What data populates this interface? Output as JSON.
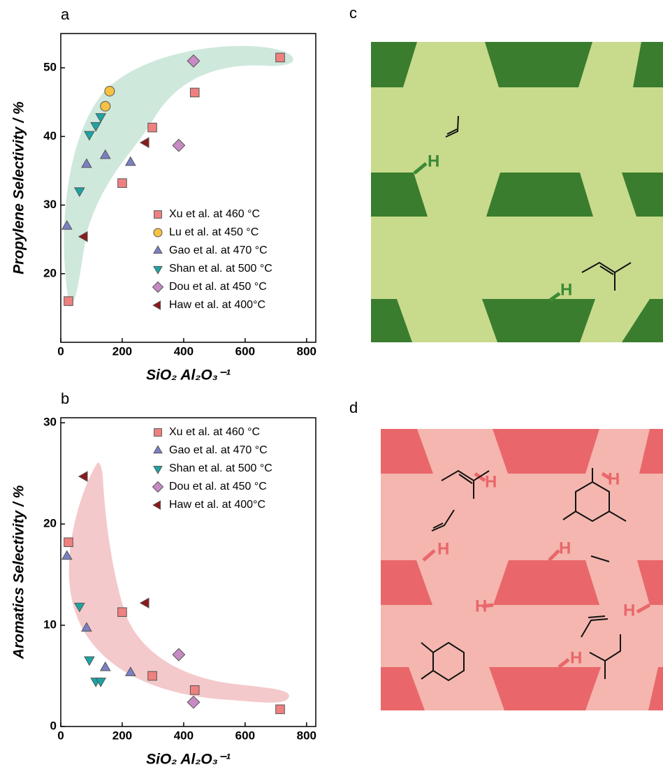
{
  "chart_data": [
    {
      "type": "scatter",
      "panel": "a",
      "x_label": "SiO₂ Al₂O₃⁻¹",
      "y_label": "Propylene Selectivity / %",
      "xlim": [
        0,
        830
      ],
      "ylim": [
        10,
        55
      ],
      "xticks": [
        0,
        200,
        400,
        600,
        800
      ],
      "yticks": [
        20,
        30,
        40,
        50
      ],
      "series": [
        {
          "name": "Xu et al. at 460 °C",
          "color": "#f08080",
          "marker": "square",
          "x": [
            25,
            200,
            298,
            436,
            714
          ],
          "values": [
            16.0,
            33.2,
            41.3,
            46.4,
            51.5
          ]
        },
        {
          "name": "Lu et al. at 450 °C",
          "color": "#f5c242",
          "marker": "circle",
          "x": [
            145,
            159
          ],
          "values": [
            44.4,
            46.6
          ]
        },
        {
          "name": "Gao et al. at 470 °C",
          "color": "#7b7fc4",
          "marker": "triangle-up",
          "x": [
            20,
            84,
            145,
            227
          ],
          "values": [
            26.9,
            35.9,
            37.2,
            36.2
          ]
        },
        {
          "name": "Shan et al. at 500 °C",
          "color": "#1aa5a5",
          "marker": "triangle-down",
          "x": [
            61,
            93,
            114,
            130
          ],
          "values": [
            32.1,
            40.3,
            41.6,
            42.9
          ]
        },
        {
          "name": "Dou et al. at 450 °C",
          "color": "#c88ac4",
          "marker": "diamond",
          "x": [
            432,
            384
          ],
          "values": [
            51.0,
            38.7
          ]
        },
        {
          "name": "Haw et al. at 400°C",
          "color": "#8b1a1a",
          "marker": "triangle-left",
          "x": [
            77,
            277
          ],
          "values": [
            25.4,
            39.1
          ]
        }
      ]
    },
    {
      "type": "scatter",
      "panel": "b",
      "x_label": "SiO₂ Al₂O₃⁻¹",
      "y_label": "Aromatics Selectivity / %",
      "xlim": [
        0,
        830
      ],
      "ylim": [
        0,
        30.5
      ],
      "xticks": [
        0,
        200,
        400,
        600,
        800
      ],
      "yticks": [
        0,
        10,
        20,
        30
      ],
      "series": [
        {
          "name": "Xu et al. at 460 °C",
          "color": "#f08080",
          "marker": "square",
          "x": [
            25,
            200,
            298,
            436,
            714
          ],
          "values": [
            18.2,
            11.3,
            5.0,
            3.6,
            1.7
          ]
        },
        {
          "name": "Gao et al. at 470 °C",
          "color": "#7b7fc4",
          "marker": "triangle-up",
          "x": [
            20,
            84,
            145,
            227
          ],
          "values": [
            16.8,
            9.7,
            5.8,
            5.3
          ]
        },
        {
          "name": "Shan et al. at 500 °C",
          "color": "#1aa5a5",
          "marker": "triangle-down",
          "x": [
            61,
            93,
            114,
            130
          ],
          "values": [
            11.9,
            6.6,
            4.5,
            4.5
          ]
        },
        {
          "name": "Dou et al. at 450 °C",
          "color": "#c88ac4",
          "marker": "diamond",
          "x": [
            384,
            432
          ],
          "values": [
            7.1,
            2.4
          ]
        },
        {
          "name": "Haw et al. at 400°C",
          "color": "#8b1a1a",
          "marker": "triangle-left",
          "x": [
            77,
            277
          ],
          "values": [
            24.7,
            12.2
          ]
        }
      ]
    }
  ],
  "diagrams": {
    "c": {
      "panel": "c",
      "labels": [
        "H",
        "H"
      ]
    },
    "d": {
      "panel": "d",
      "labels": [
        "H",
        "H",
        "H",
        "H",
        "H",
        "H",
        "H"
      ]
    }
  }
}
